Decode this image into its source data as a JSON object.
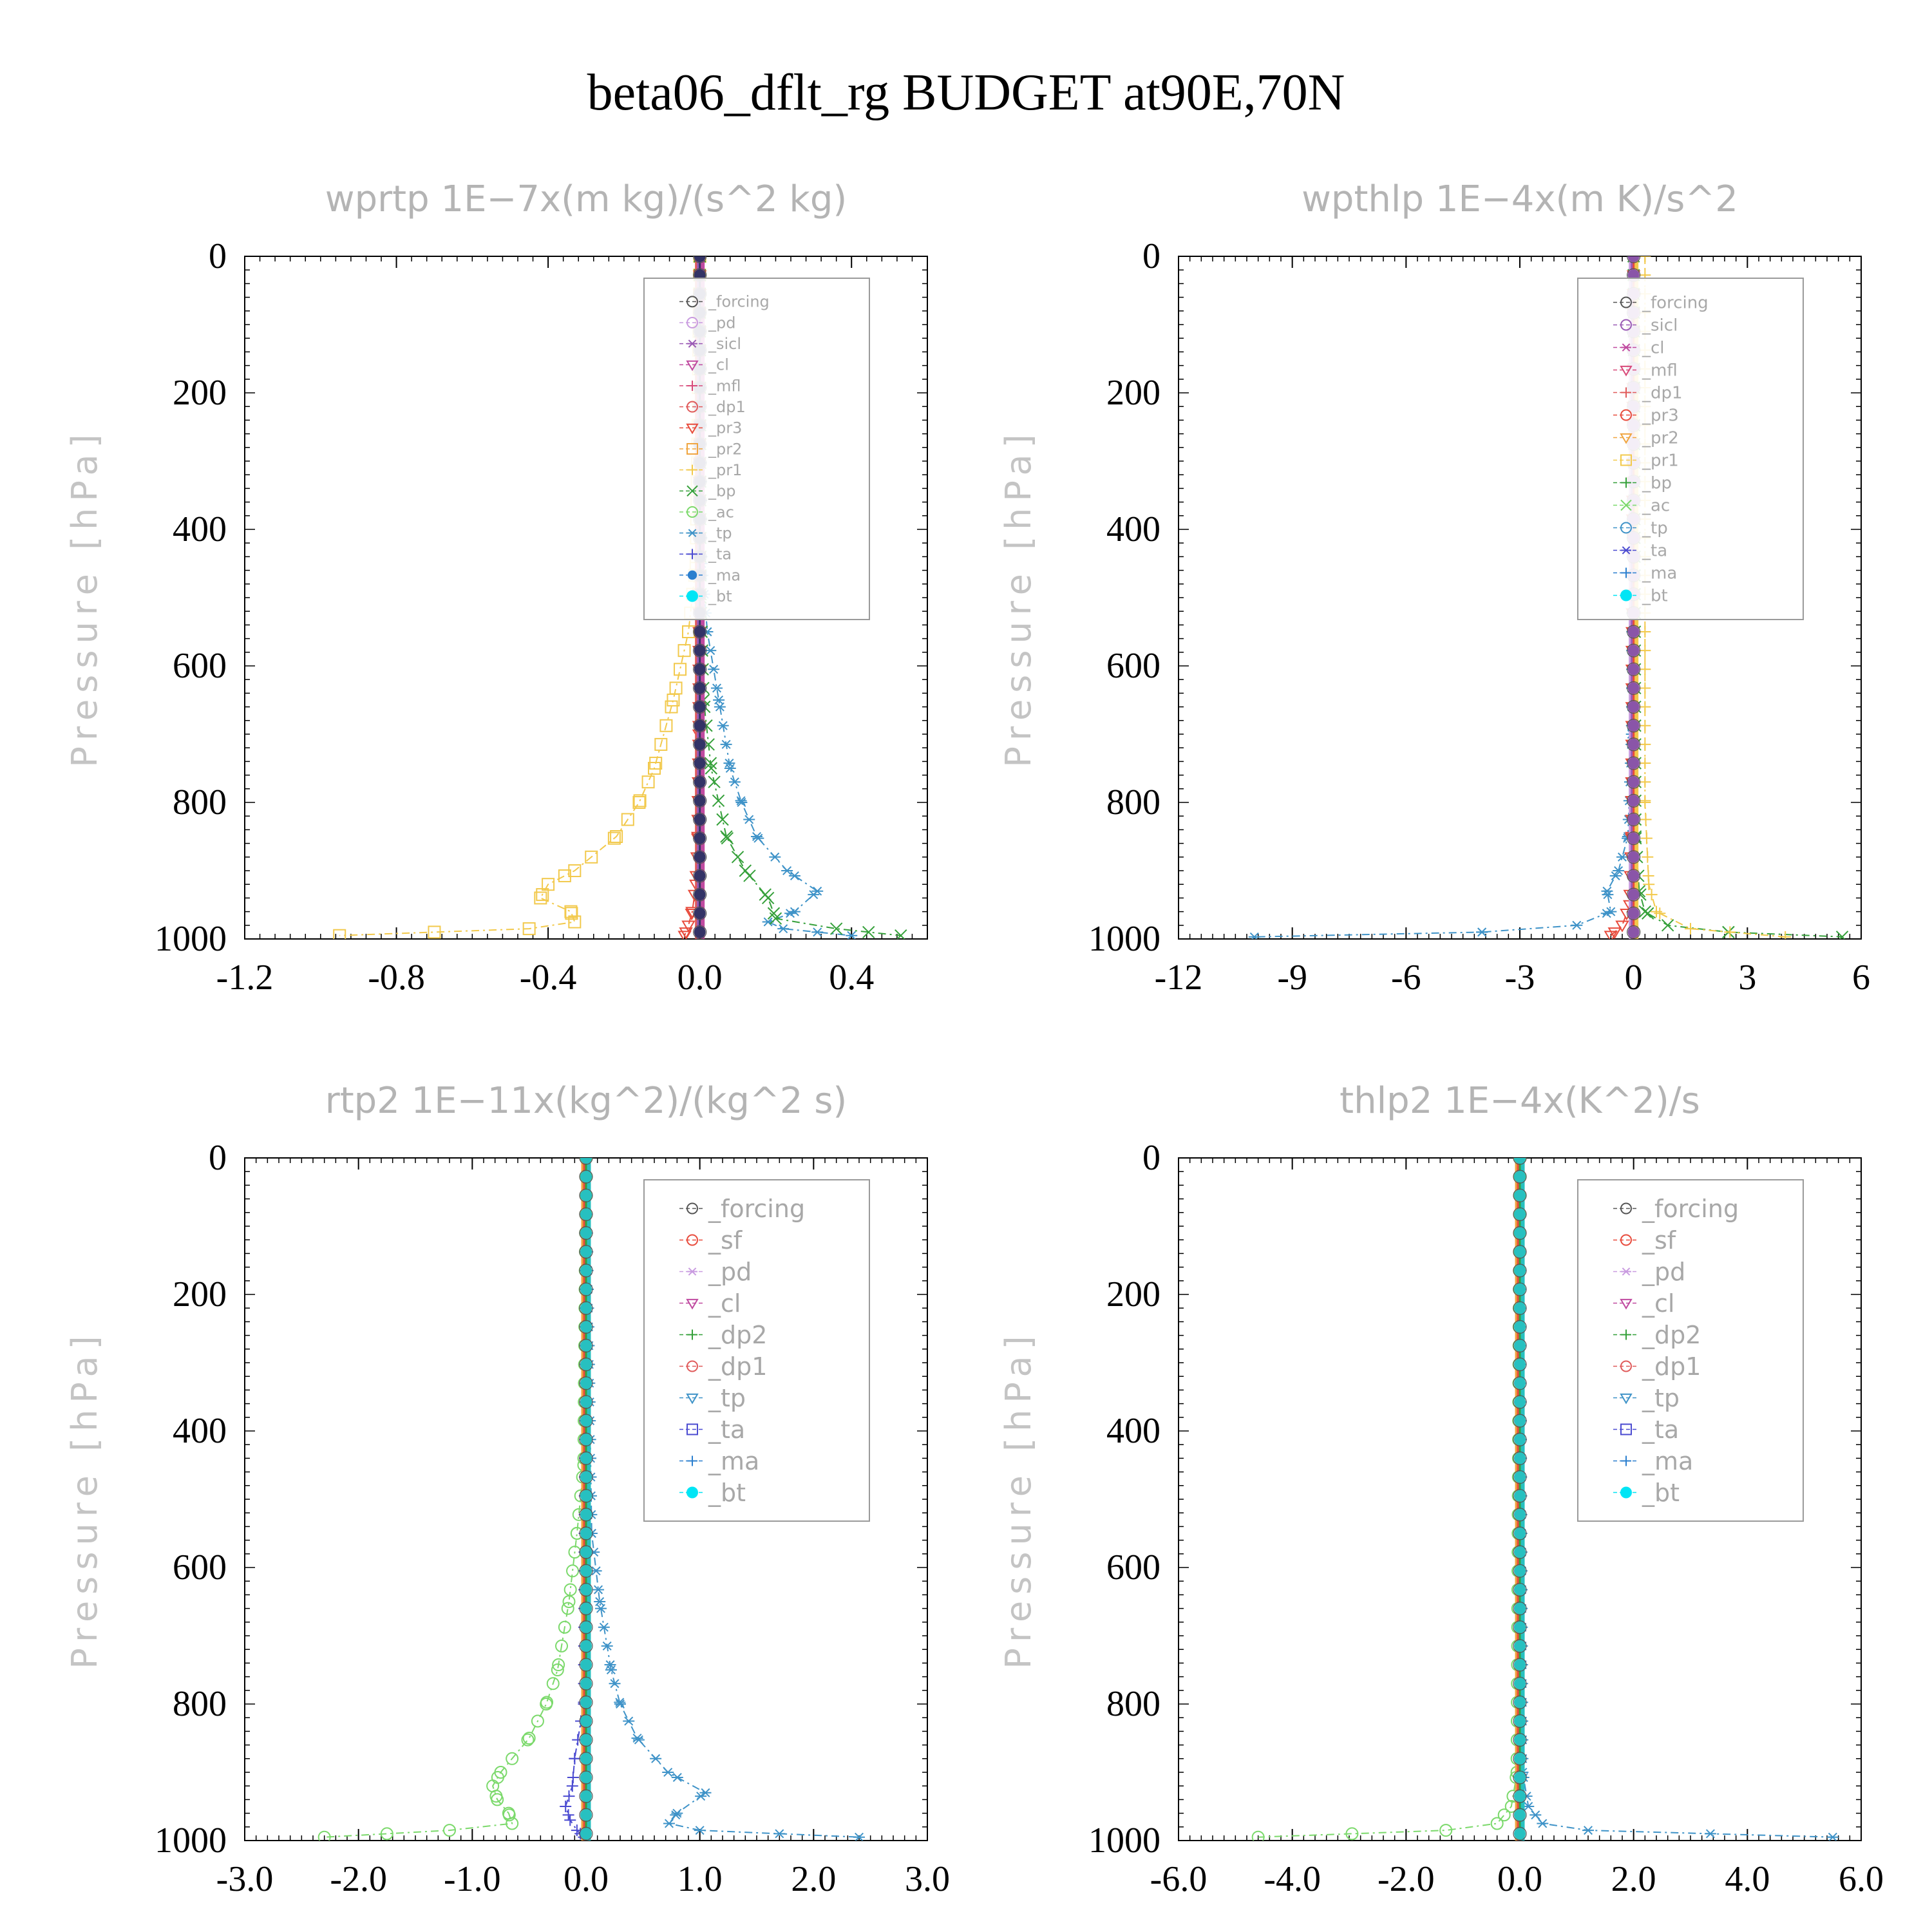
{
  "chart_data": {
    "title": "beta06_dflt_rg  BUDGET at90E,70N",
    "panels": [
      {
        "title": "wprtp   1E−7x(m kg)/(s^2 kg)",
        "ylabel": "Pressure [hPa]",
        "type": "line",
        "xlim": [
          -1.2,
          0.6
        ],
        "xticks": [
          "-1.2",
          "-0.8",
          "-0.4",
          "0.0",
          "0.4"
        ],
        "xtick_values": [
          -1.2,
          -0.8,
          -0.4,
          0.0,
          0.4
        ],
        "ylim": [
          1000,
          0
        ],
        "yticks": [
          "0",
          "200",
          "400",
          "600",
          "800",
          "1000"
        ],
        "yvalues": [
          0,
          200,
          400,
          600,
          800,
          1000
        ],
        "legend": [
          "_forcing",
          "_pd",
          "_sicl",
          "_cl",
          "_mfl",
          "_dp1",
          "_pr3",
          "_pr2",
          "_pr1",
          "_bp",
          "_ac",
          "_tp",
          "_ta",
          "_ma",
          "_bt"
        ],
        "series": [
          {
            "name": "_pr1",
            "color": "#f2c94c",
            "marker": "square",
            "p": [
              0,
              250,
              450,
              550,
              650,
              750,
              800,
              850,
              900,
              920,
              940,
              960,
              975,
              985,
              995
            ],
            "x": [
              0,
              -0.005,
              -0.01,
              -0.03,
              -0.07,
              -0.12,
              -0.16,
              -0.22,
              -0.33,
              -0.4,
              -0.42,
              -0.34,
              -0.33,
              -0.45,
              -0.95
            ]
          },
          {
            "name": "_tp",
            "color": "#3f93c8",
            "marker": "asterisk",
            "p": [
              0,
              450,
              550,
              650,
              750,
              800,
              850,
              900,
              930,
              960,
              975,
              985,
              995
            ],
            "x": [
              0,
              0.005,
              0.02,
              0.05,
              0.08,
              0.11,
              0.15,
              0.23,
              0.31,
              0.25,
              0.18,
              0.22,
              0.4
            ]
          },
          {
            "name": "_bp",
            "color": "#35a03a",
            "marker": "x",
            "p": [
              0,
              500,
              650,
              750,
              850,
              900,
              940,
              970,
              985,
              995
            ],
            "x": [
              0,
              0.002,
              0.01,
              0.03,
              0.07,
              0.12,
              0.18,
              0.2,
              0.36,
              0.53
            ]
          },
          {
            "name": "_pr3",
            "color": "#e84b3c",
            "marker": "tri-down",
            "p": [
              0,
              700,
              850,
              920,
              960,
              980,
              995
            ],
            "x": [
              0,
              -0.002,
              -0.005,
              -0.01,
              -0.02,
              -0.03,
              -0.04
            ]
          },
          {
            "name": "_bt",
            "color": "#333366",
            "marker": "dot",
            "p": [
              0,
              1000
            ],
            "x": [
              0,
              0
            ]
          }
        ]
      },
      {
        "title": "wpthlp   1E−4x(m K)/s^2",
        "ylabel": "Pressure [hPa]",
        "type": "line",
        "xlim": [
          -12,
          6
        ],
        "xticks": [
          "-12",
          "-9",
          "-6",
          "-3",
          "0",
          "3",
          "6"
        ],
        "xtick_values": [
          -12,
          -9,
          -6,
          -3,
          0,
          3,
          6
        ],
        "ylim": [
          1000,
          0
        ],
        "yticks": [
          "0",
          "200",
          "400",
          "600",
          "800",
          "1000"
        ],
        "yvalues": [
          0,
          200,
          400,
          600,
          800,
          1000
        ],
        "legend": [
          "_forcing",
          "_sicl",
          "_cl",
          "_mfl",
          "_dp1",
          "_pr3",
          "_pr2",
          "_pr1",
          "_bp",
          "_ac",
          "_tp",
          "_ta",
          "_ma",
          "_bt"
        ],
        "series": [
          {
            "name": "_tp",
            "color": "#3f93c8",
            "marker": "asterisk",
            "p": [
              0,
              700,
              850,
              900,
              930,
              960,
              980,
              990,
              997
            ],
            "x": [
              0,
              -0.05,
              -0.15,
              -0.4,
              -0.7,
              -0.6,
              -1.5,
              -4.0,
              -10.0
            ]
          },
          {
            "name": "_bp",
            "color": "#35a03a",
            "marker": "x",
            "p": [
              0,
              850,
              930,
              960,
              980,
              990,
              997
            ],
            "x": [
              0,
              0.05,
              0.15,
              0.3,
              0.9,
              2.5,
              5.5
            ]
          },
          {
            "name": "_pr1",
            "color": "#f2c94c",
            "marker": "plus",
            "p": [
              0,
              800,
              920,
              960,
              985,
              997
            ],
            "x": [
              0.3,
              0.3,
              0.4,
              0.6,
              1.5,
              4.0
            ]
          },
          {
            "name": "_pr3",
            "color": "#e84b3c",
            "marker": "tri-down",
            "p": [
              0,
              850,
              950,
              980,
              995
            ],
            "x": [
              0,
              -0.05,
              -0.1,
              -0.3,
              -0.6
            ]
          },
          {
            "name": "_bt",
            "color": "#8a55a8",
            "marker": "dot",
            "p": [
              0,
              1000
            ],
            "x": [
              0,
              0
            ]
          }
        ]
      },
      {
        "title": "rtp2   1E−11x(kg^2)/(kg^2 s)",
        "ylabel": "Pressure [hPa]",
        "type": "line",
        "xlim": [
          -3.0,
          3.0
        ],
        "xticks": [
          "-3.0",
          "-2.0",
          "-1.0",
          "0.0",
          "1.0",
          "2.0",
          "3.0"
        ],
        "xtick_values": [
          -3,
          -2,
          -1,
          0,
          1,
          2,
          3
        ],
        "ylim": [
          1000,
          0
        ],
        "yticks": [
          "0",
          "200",
          "400",
          "600",
          "800",
          "1000"
        ],
        "yvalues": [
          0,
          200,
          400,
          600,
          800,
          1000
        ],
        "legend": [
          "_forcing",
          "_sf",
          "_pd",
          "_cl",
          "_dp2",
          "_dp1",
          "_tp",
          "_ta",
          "_ma",
          "_bt"
        ],
        "series": [
          {
            "name": "_dp1",
            "color": "#7bd96b",
            "marker": "circle",
            "p": [
              0,
              450,
              550,
              650,
              750,
              800,
              850,
              900,
              920,
              940,
              960,
              975,
              985,
              995
            ],
            "x": [
              0,
              -0.02,
              -0.08,
              -0.15,
              -0.25,
              -0.35,
              -0.5,
              -0.75,
              -0.82,
              -0.78,
              -0.68,
              -0.65,
              -1.2,
              -2.3
            ]
          },
          {
            "name": "_tp",
            "color": "#3f93c8",
            "marker": "asterisk",
            "p": [
              0,
              550,
              650,
              750,
              800,
              850,
              900,
              930,
              960,
              975,
              985,
              995
            ],
            "x": [
              0,
              0.05,
              0.12,
              0.22,
              0.3,
              0.45,
              0.72,
              1.05,
              0.8,
              0.73,
              1.0,
              2.4
            ]
          },
          {
            "name": "_ta",
            "color": "#4b4bd1",
            "marker": "plus",
            "p": [
              0,
              800,
              880,
              920,
              950,
              970,
              985,
              995
            ],
            "x": [
              0,
              -0.02,
              -0.1,
              -0.12,
              -0.18,
              -0.14,
              -0.08,
              -0.02
            ]
          },
          {
            "name": "_bt",
            "color": "#27c0c0",
            "marker": "dot",
            "p": [
              0,
              1000
            ],
            "x": [
              0,
              0
            ]
          }
        ]
      },
      {
        "title": "thlp2   1E−4x(K^2)/s",
        "ylabel": "Pressure [hPa]",
        "type": "line",
        "xlim": [
          -6.0,
          6.0
        ],
        "xticks": [
          "-6.0",
          "-4.0",
          "-2.0",
          "0.0",
          "2.0",
          "4.0",
          "6.0"
        ],
        "xtick_values": [
          -6,
          -4,
          -2,
          0,
          2,
          4,
          6
        ],
        "ylim": [
          1000,
          0
        ],
        "yticks": [
          "0",
          "200",
          "400",
          "600",
          "800",
          "1000"
        ],
        "yvalues": [
          0,
          200,
          400,
          600,
          800,
          1000
        ],
        "legend": [
          "_forcing",
          "_sf",
          "_pd",
          "_cl",
          "_dp2",
          "_dp1",
          "_tp",
          "_ta",
          "_ma",
          "_bt"
        ],
        "series": [
          {
            "name": "_dp1",
            "color": "#7bd96b",
            "marker": "circle",
            "p": [
              0,
              900,
              950,
              975,
              985,
              995
            ],
            "x": [
              0,
              -0.05,
              -0.15,
              -0.4,
              -1.3,
              -4.6
            ]
          },
          {
            "name": "_tp",
            "color": "#3f93c8",
            "marker": "asterisk",
            "p": [
              0,
              900,
              950,
              975,
              985,
              995
            ],
            "x": [
              0,
              0.05,
              0.15,
              0.4,
              1.2,
              5.5
            ]
          },
          {
            "name": "_bt",
            "color": "#27c0c0",
            "marker": "dot",
            "p": [
              0,
              1000
            ],
            "x": [
              0,
              0
            ]
          }
        ]
      }
    ]
  }
}
